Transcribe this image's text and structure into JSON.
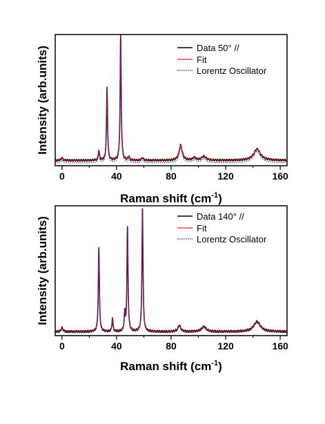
{
  "chart_data": [
    {
      "type": "line",
      "xlabel": "Raman shift (cm",
      "xlabel_sup": "-1",
      "xlabel_end": ")",
      "ylabel": "Intensity (arb.units)",
      "xlim": [
        -5,
        165
      ],
      "ylim": [
        0,
        1
      ],
      "xticks": [
        "0",
        "40",
        "80",
        "120",
        "160"
      ],
      "grid": false,
      "legend_position": "top-right",
      "colors": {
        "data": "#000000",
        "fit": "#e8202a",
        "lorentz": "#1a1aa8"
      },
      "series": [
        {
          "name": "Data 50° //",
          "style": "solid"
        },
        {
          "name": "Fit",
          "style": "solid"
        },
        {
          "name": "Lorentz Oscillator",
          "style": "dotted"
        }
      ],
      "peaks": [
        {
          "x": 0,
          "height": 0.02,
          "width": 0.8
        },
        {
          "x": 27,
          "height": 0.08,
          "width": 0.5
        },
        {
          "x": 33,
          "height": 0.58,
          "width": 0.45
        },
        {
          "x": 43,
          "height": 0.99,
          "width": 0.45
        },
        {
          "x": 49,
          "height": 0.03,
          "width": 0.6
        },
        {
          "x": 59,
          "height": 0.02,
          "width": 0.8
        },
        {
          "x": 87,
          "height": 0.12,
          "width": 1.4
        },
        {
          "x": 97,
          "height": 0.02,
          "width": 1.5
        },
        {
          "x": 104,
          "height": 0.03,
          "width": 2.0
        },
        {
          "x": 143,
          "height": 0.09,
          "width": 3.0
        }
      ],
      "baseline": 0.02
    },
    {
      "type": "line",
      "xlabel": "Raman shift (cm",
      "xlabel_sup": "-1",
      "xlabel_end": ")",
      "ylabel": "Intensity (arb.units)",
      "xlim": [
        -5,
        165
      ],
      "ylim": [
        0,
        1
      ],
      "xticks": [
        "0",
        "40",
        "80",
        "120",
        "160"
      ],
      "grid": false,
      "legend_position": "top-right",
      "colors": {
        "data": "#000000",
        "fit": "#e8202a",
        "lorentz": "#1a1aa8"
      },
      "series": [
        {
          "name": "Data 140° //",
          "style": "solid"
        },
        {
          "name": "Fit",
          "style": "solid"
        },
        {
          "name": "Lorentz Oscillator",
          "style": "dotted"
        }
      ],
      "peaks": [
        {
          "x": 0,
          "height": 0.03,
          "width": 0.8
        },
        {
          "x": 27,
          "height": 0.68,
          "width": 0.45
        },
        {
          "x": 37,
          "height": 0.11,
          "width": 0.45
        },
        {
          "x": 46,
          "height": 0.14,
          "width": 0.45
        },
        {
          "x": 48,
          "height": 0.84,
          "width": 0.45
        },
        {
          "x": 59,
          "height": 0.99,
          "width": 0.45
        },
        {
          "x": 86,
          "height": 0.05,
          "width": 1.2
        },
        {
          "x": 104,
          "height": 0.04,
          "width": 2.0
        },
        {
          "x": 143,
          "height": 0.08,
          "width": 3.0
        }
      ],
      "baseline": 0.01
    }
  ]
}
